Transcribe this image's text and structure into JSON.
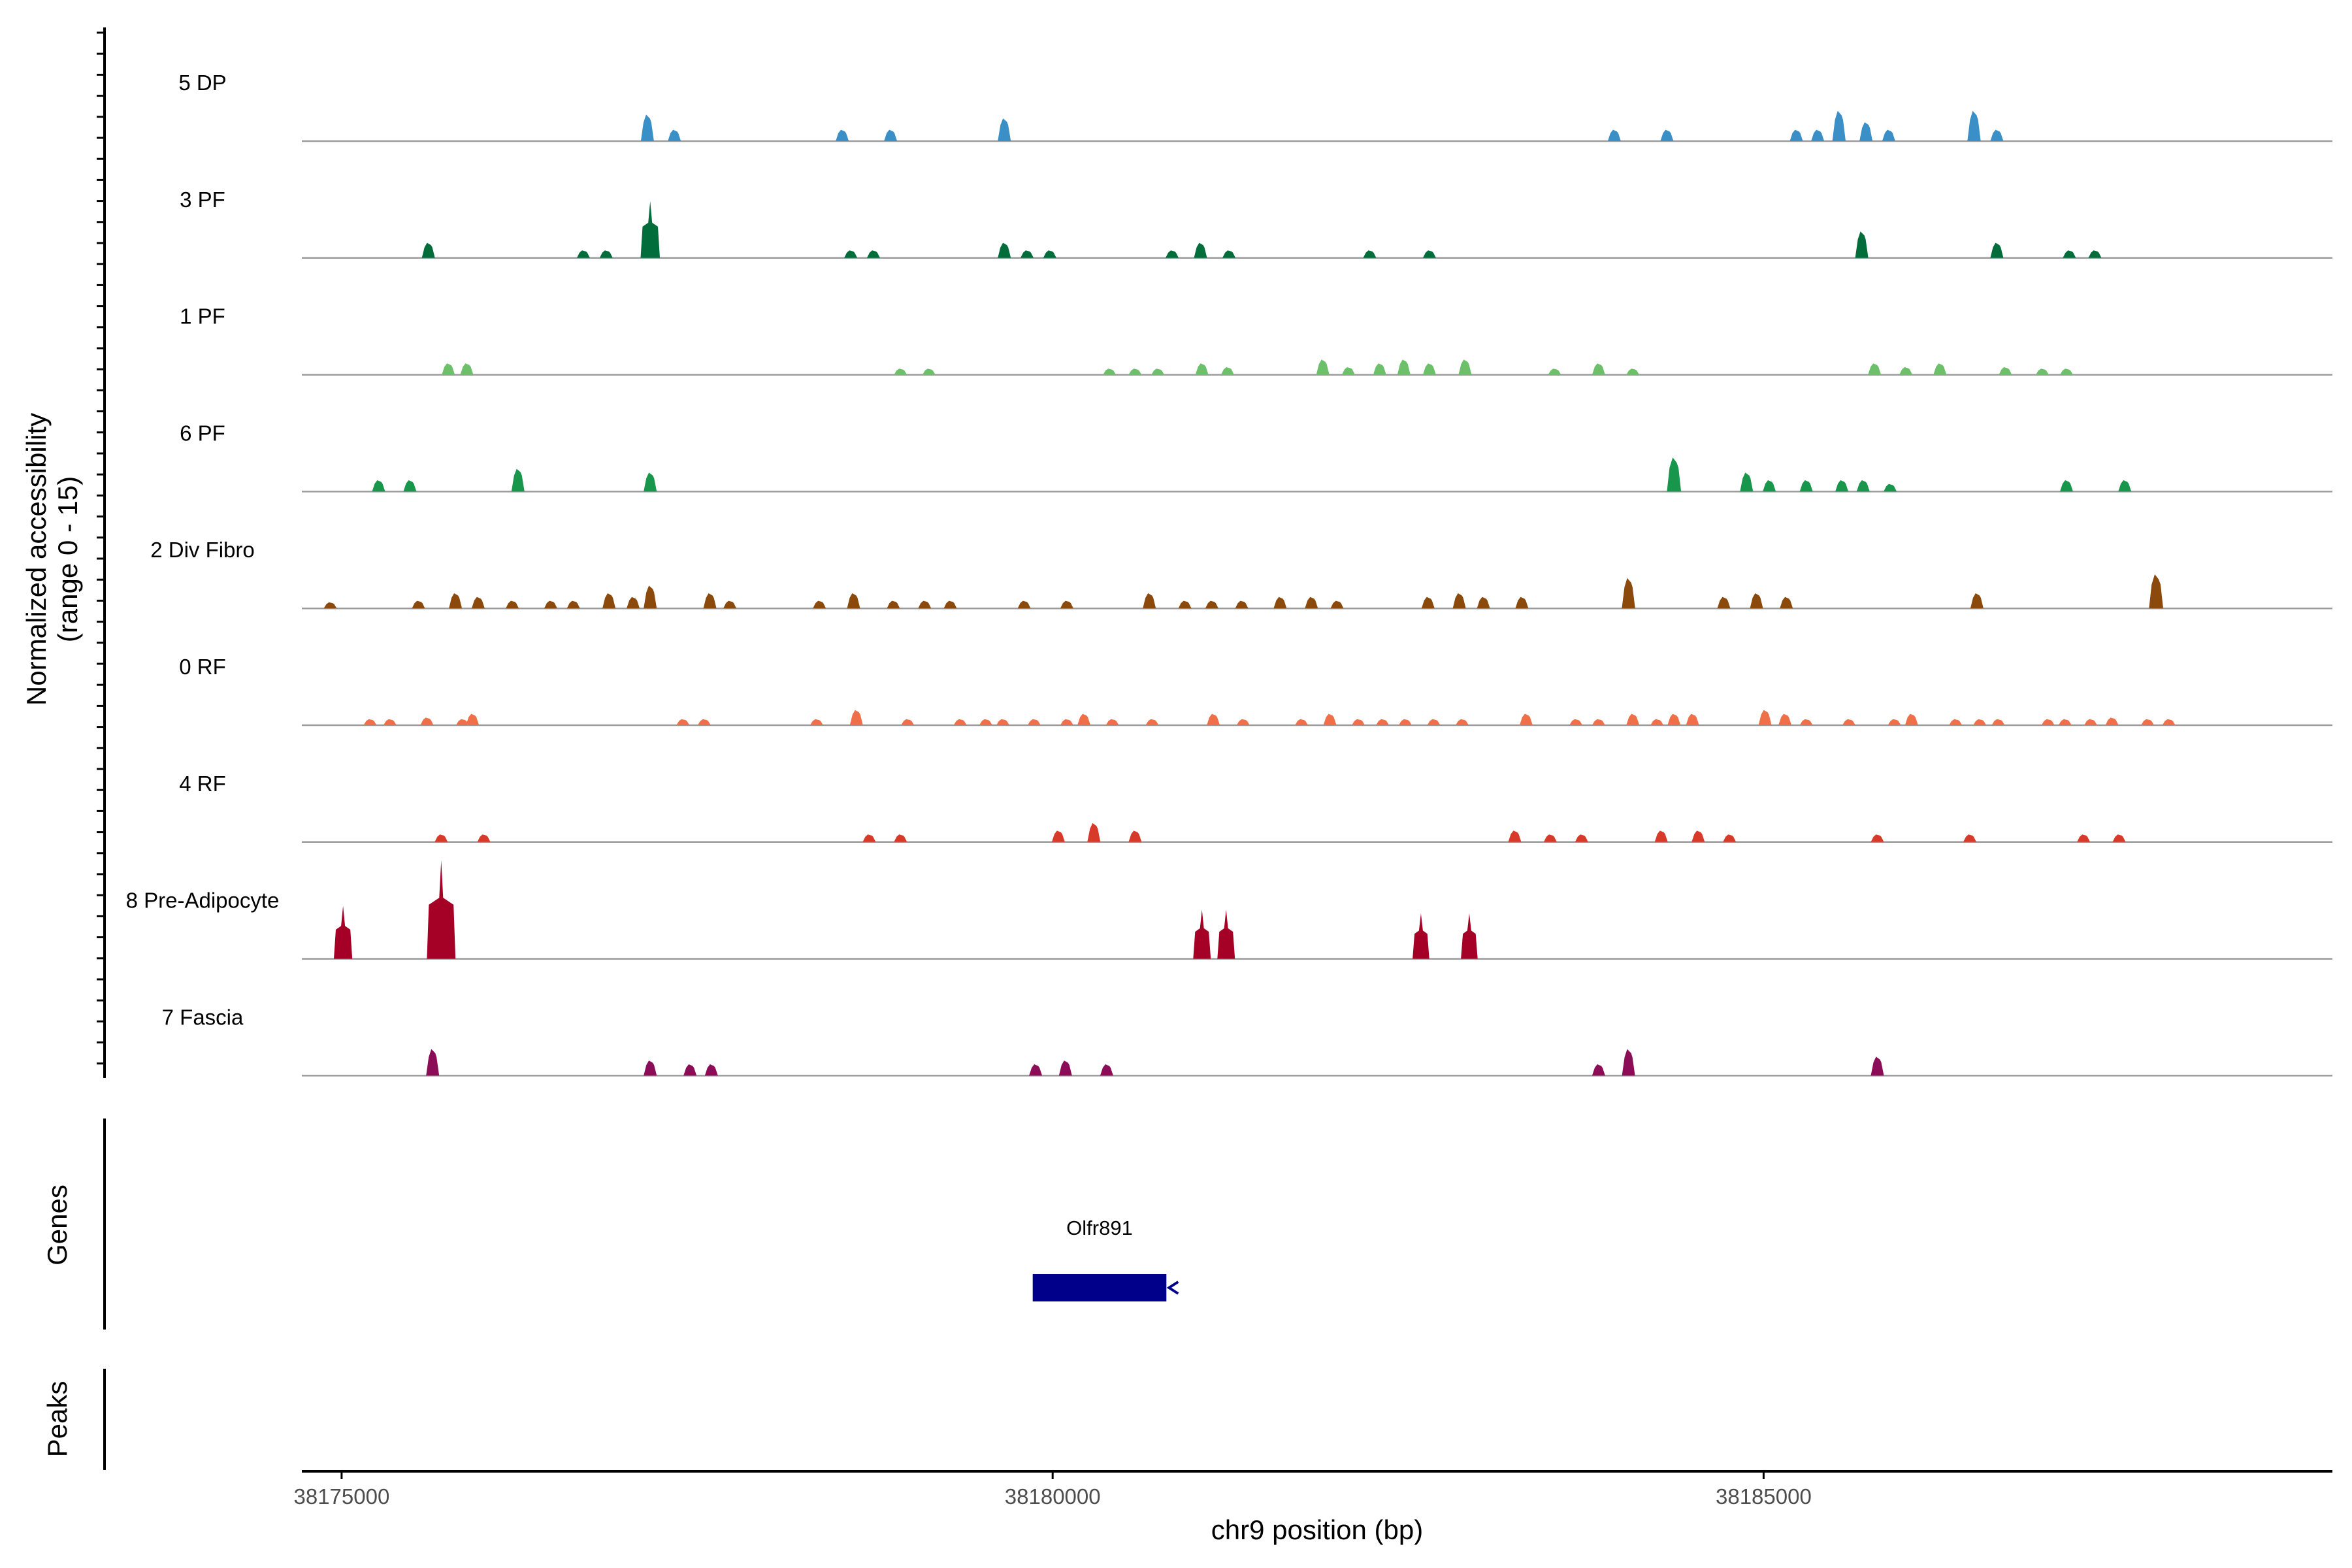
{
  "chart_data": {
    "type": "area",
    "ylabel": "Normalized accessibility",
    "ylabel_range": "(range 0 - 15)",
    "xlabel": "chr9 position (bp)",
    "xlim": [
      38174720,
      38189000
    ],
    "ylim": [
      0,
      15
    ],
    "x_ticks": [
      38175000,
      38180000,
      38185000
    ],
    "x_tick_labels": [
      "38175000",
      "38180000",
      "38185000"
    ],
    "panel_labels": {
      "genes": "Genes",
      "peaks": "Peaks"
    },
    "genes": [
      {
        "name": "Olfr891",
        "start": 38179860,
        "end": 38180800,
        "strand": "-",
        "color": "#00008b"
      }
    ],
    "peaks": [],
    "tracks": [
      {
        "name": "5 DP",
        "color": "#3a8fc7",
        "peaks": [
          [
            38177150,
            3.5
          ],
          [
            38177340,
            1.5
          ],
          [
            38178520,
            1.5
          ],
          [
            38178860,
            1.5
          ],
          [
            38179660,
            3.0
          ],
          [
            38183950,
            1.5
          ],
          [
            38184320,
            1.5
          ],
          [
            38185230,
            1.5
          ],
          [
            38185380,
            1.5
          ],
          [
            38185530,
            4.0
          ],
          [
            38185720,
            2.5
          ],
          [
            38185880,
            1.5
          ],
          [
            38186480,
            4.0
          ],
          [
            38186640,
            1.5
          ]
        ]
      },
      {
        "name": "3 PF",
        "color": "#006d3b",
        "peaks": [
          [
            38175610,
            2.0
          ],
          [
            38176700,
            1.0
          ],
          [
            38176860,
            1.0
          ],
          [
            38177170,
            7.5
          ],
          [
            38178580,
            1.0
          ],
          [
            38178740,
            1.0
          ],
          [
            38179660,
            2.0
          ],
          [
            38179820,
            1.0
          ],
          [
            38179980,
            1.0
          ],
          [
            38180840,
            1.0
          ],
          [
            38181040,
            2.0
          ],
          [
            38181240,
            1.0
          ],
          [
            38182230,
            1.0
          ],
          [
            38182650,
            1.0
          ],
          [
            38185690,
            3.5
          ],
          [
            38186640,
            2.0
          ],
          [
            38187150,
            1.0
          ],
          [
            38187330,
            1.0
          ]
        ]
      },
      {
        "name": "1 PF",
        "color": "#6cc06a",
        "peaks": [
          [
            38175750,
            1.5
          ],
          [
            38175880,
            1.5
          ],
          [
            38178930,
            0.8
          ],
          [
            38179130,
            0.8
          ],
          [
            38180400,
            0.8
          ],
          [
            38180580,
            0.8
          ],
          [
            38180740,
            0.8
          ],
          [
            38181050,
            1.5
          ],
          [
            38181230,
            1.0
          ],
          [
            38181900,
            2.0
          ],
          [
            38182080,
            1.0
          ],
          [
            38182300,
            1.5
          ],
          [
            38182470,
            2.0
          ],
          [
            38182650,
            1.5
          ],
          [
            38182900,
            2.0
          ],
          [
            38183530,
            0.8
          ],
          [
            38183840,
            1.5
          ],
          [
            38184080,
            0.8
          ],
          [
            38185780,
            1.5
          ],
          [
            38186000,
            1.0
          ],
          [
            38186240,
            1.5
          ],
          [
            38186700,
            1.0
          ],
          [
            38186960,
            0.8
          ],
          [
            38187130,
            0.8
          ]
        ]
      },
      {
        "name": "6 PF",
        "color": "#17964c",
        "peaks": [
          [
            38175260,
            1.5
          ],
          [
            38175480,
            1.5
          ],
          [
            38176240,
            3.0
          ],
          [
            38177170,
            2.5
          ],
          [
            38184370,
            4.5
          ],
          [
            38184880,
            2.5
          ],
          [
            38185040,
            1.5
          ],
          [
            38185300,
            1.5
          ],
          [
            38185550,
            1.5
          ],
          [
            38185700,
            1.5
          ],
          [
            38185890,
            1.0
          ],
          [
            38187130,
            1.5
          ],
          [
            38187540,
            1.5
          ]
        ]
      },
      {
        "name": "2 Div Fibro",
        "color": "#8b4a0b",
        "peaks": [
          [
            38174920,
            0.8
          ],
          [
            38175540,
            1.0
          ],
          [
            38175800,
            2.0
          ],
          [
            38175960,
            1.5
          ],
          [
            38176200,
            1.0
          ],
          [
            38176470,
            1.0
          ],
          [
            38176630,
            1.0
          ],
          [
            38176880,
            2.0
          ],
          [
            38177050,
            1.5
          ],
          [
            38177170,
            3.0
          ],
          [
            38177590,
            2.0
          ],
          [
            38177730,
            1.0
          ],
          [
            38178360,
            1.0
          ],
          [
            38178600,
            2.0
          ],
          [
            38178880,
            1.0
          ],
          [
            38179100,
            1.0
          ],
          [
            38179280,
            1.0
          ],
          [
            38179800,
            1.0
          ],
          [
            38180100,
            1.0
          ],
          [
            38180680,
            2.0
          ],
          [
            38180930,
            1.0
          ],
          [
            38181120,
            1.0
          ],
          [
            38181330,
            1.0
          ],
          [
            38181600,
            1.5
          ],
          [
            38181820,
            1.5
          ],
          [
            38182000,
            1.0
          ],
          [
            38182640,
            1.5
          ],
          [
            38182860,
            2.0
          ],
          [
            38183030,
            1.5
          ],
          [
            38183300,
            1.5
          ],
          [
            38184050,
            4.0
          ],
          [
            38184720,
            1.5
          ],
          [
            38184950,
            2.0
          ],
          [
            38185160,
            1.5
          ],
          [
            38186500,
            2.0
          ],
          [
            38187760,
            4.5
          ]
        ]
      },
      {
        "name": "0 RF",
        "color": "#ef7048",
        "peaks": [
          [
            38175200,
            0.8
          ],
          [
            38175340,
            0.8
          ],
          [
            38175600,
            1.0
          ],
          [
            38175850,
            0.8
          ],
          [
            38175920,
            1.5
          ],
          [
            38177400,
            0.8
          ],
          [
            38177550,
            0.8
          ],
          [
            38178340,
            0.8
          ],
          [
            38178620,
            2.0
          ],
          [
            38178980,
            0.8
          ],
          [
            38179350,
            0.8
          ],
          [
            38179530,
            0.8
          ],
          [
            38179650,
            0.8
          ],
          [
            38179870,
            0.8
          ],
          [
            38180100,
            0.8
          ],
          [
            38180220,
            1.5
          ],
          [
            38180420,
            0.8
          ],
          [
            38180700,
            0.8
          ],
          [
            38181130,
            1.5
          ],
          [
            38181340,
            0.8
          ],
          [
            38181750,
            0.8
          ],
          [
            38181950,
            1.5
          ],
          [
            38182150,
            0.8
          ],
          [
            38182320,
            0.8
          ],
          [
            38182480,
            0.8
          ],
          [
            38182680,
            0.8
          ],
          [
            38182880,
            0.8
          ],
          [
            38183330,
            1.5
          ],
          [
            38183680,
            0.8
          ],
          [
            38183840,
            0.8
          ],
          [
            38184080,
            1.5
          ],
          [
            38184250,
            0.8
          ],
          [
            38184370,
            1.5
          ],
          [
            38184500,
            1.5
          ],
          [
            38185010,
            2.0
          ],
          [
            38185150,
            1.5
          ],
          [
            38185300,
            0.8
          ],
          [
            38185600,
            0.8
          ],
          [
            38185920,
            0.8
          ],
          [
            38186040,
            1.5
          ],
          [
            38186350,
            0.8
          ],
          [
            38186520,
            0.8
          ],
          [
            38186650,
            0.8
          ],
          [
            38187000,
            0.8
          ],
          [
            38187120,
            0.8
          ],
          [
            38187300,
            0.8
          ],
          [
            38187450,
            1.0
          ],
          [
            38187700,
            0.8
          ],
          [
            38187850,
            0.8
          ]
        ]
      },
      {
        "name": "4 RF",
        "color": "#d73a29",
        "peaks": [
          [
            38175700,
            1.0
          ],
          [
            38176000,
            1.0
          ],
          [
            38178710,
            1.0
          ],
          [
            38178930,
            1.0
          ],
          [
            38180040,
            1.5
          ],
          [
            38180290,
            2.5
          ],
          [
            38180580,
            1.5
          ],
          [
            38183250,
            1.5
          ],
          [
            38183500,
            1.0
          ],
          [
            38183720,
            1.0
          ],
          [
            38184280,
            1.5
          ],
          [
            38184540,
            1.5
          ],
          [
            38184760,
            1.0
          ],
          [
            38185800,
            1.0
          ],
          [
            38186450,
            1.0
          ],
          [
            38187250,
            1.0
          ],
          [
            38187500,
            1.0
          ]
        ]
      },
      {
        "name": "8 Pre-Adipocyte",
        "color": "#a50026",
        "peaks": [
          [
            38175010,
            7.0
          ],
          [
            38175700,
            13.0
          ],
          [
            38181050,
            6.5
          ],
          [
            38181220,
            6.5
          ],
          [
            38182590,
            6.0
          ],
          [
            38182930,
            6.0
          ]
        ]
      },
      {
        "name": "7 Fascia",
        "color": "#8b0d57",
        "peaks": [
          [
            38175640,
            3.5
          ],
          [
            38177170,
            2.0
          ],
          [
            38177450,
            1.5
          ],
          [
            38177600,
            1.5
          ],
          [
            38179880,
            1.5
          ],
          [
            38180090,
            2.0
          ],
          [
            38180380,
            1.5
          ],
          [
            38183840,
            1.5
          ],
          [
            38184050,
            3.5
          ],
          [
            38185800,
            2.5
          ]
        ]
      }
    ]
  }
}
